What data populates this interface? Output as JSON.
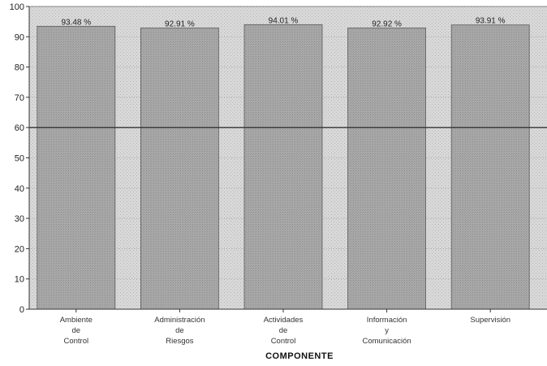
{
  "chart_data": {
    "type": "bar",
    "categories": [
      [
        "Ambiente",
        "de",
        "Control"
      ],
      [
        "Administración",
        "de",
        "Riesgos"
      ],
      [
        "Actividades",
        "de",
        "Control"
      ],
      [
        "Información",
        "y",
        "Comunicación"
      ],
      [
        "Supervisión"
      ]
    ],
    "values": [
      93.48,
      92.91,
      94.01,
      92.92,
      93.91
    ],
    "value_labels": [
      "93.48 %",
      "92.91 %",
      "94.01 %",
      "92.92 %",
      "93.91 %"
    ],
    "xlabel": "COMPONENTE",
    "ylabel": "",
    "ylim": [
      0,
      100
    ],
    "yticks": [
      0,
      10,
      20,
      30,
      40,
      50,
      60,
      70,
      80,
      90,
      100
    ],
    "reference_line": 60,
    "grid": true,
    "colors": {
      "plot_background": "#dcdcdc",
      "bar_fill": "#a9a9a9",
      "bar_stroke": "#5a5a5a",
      "reference_line": "#333333",
      "axis": "#333333"
    }
  }
}
